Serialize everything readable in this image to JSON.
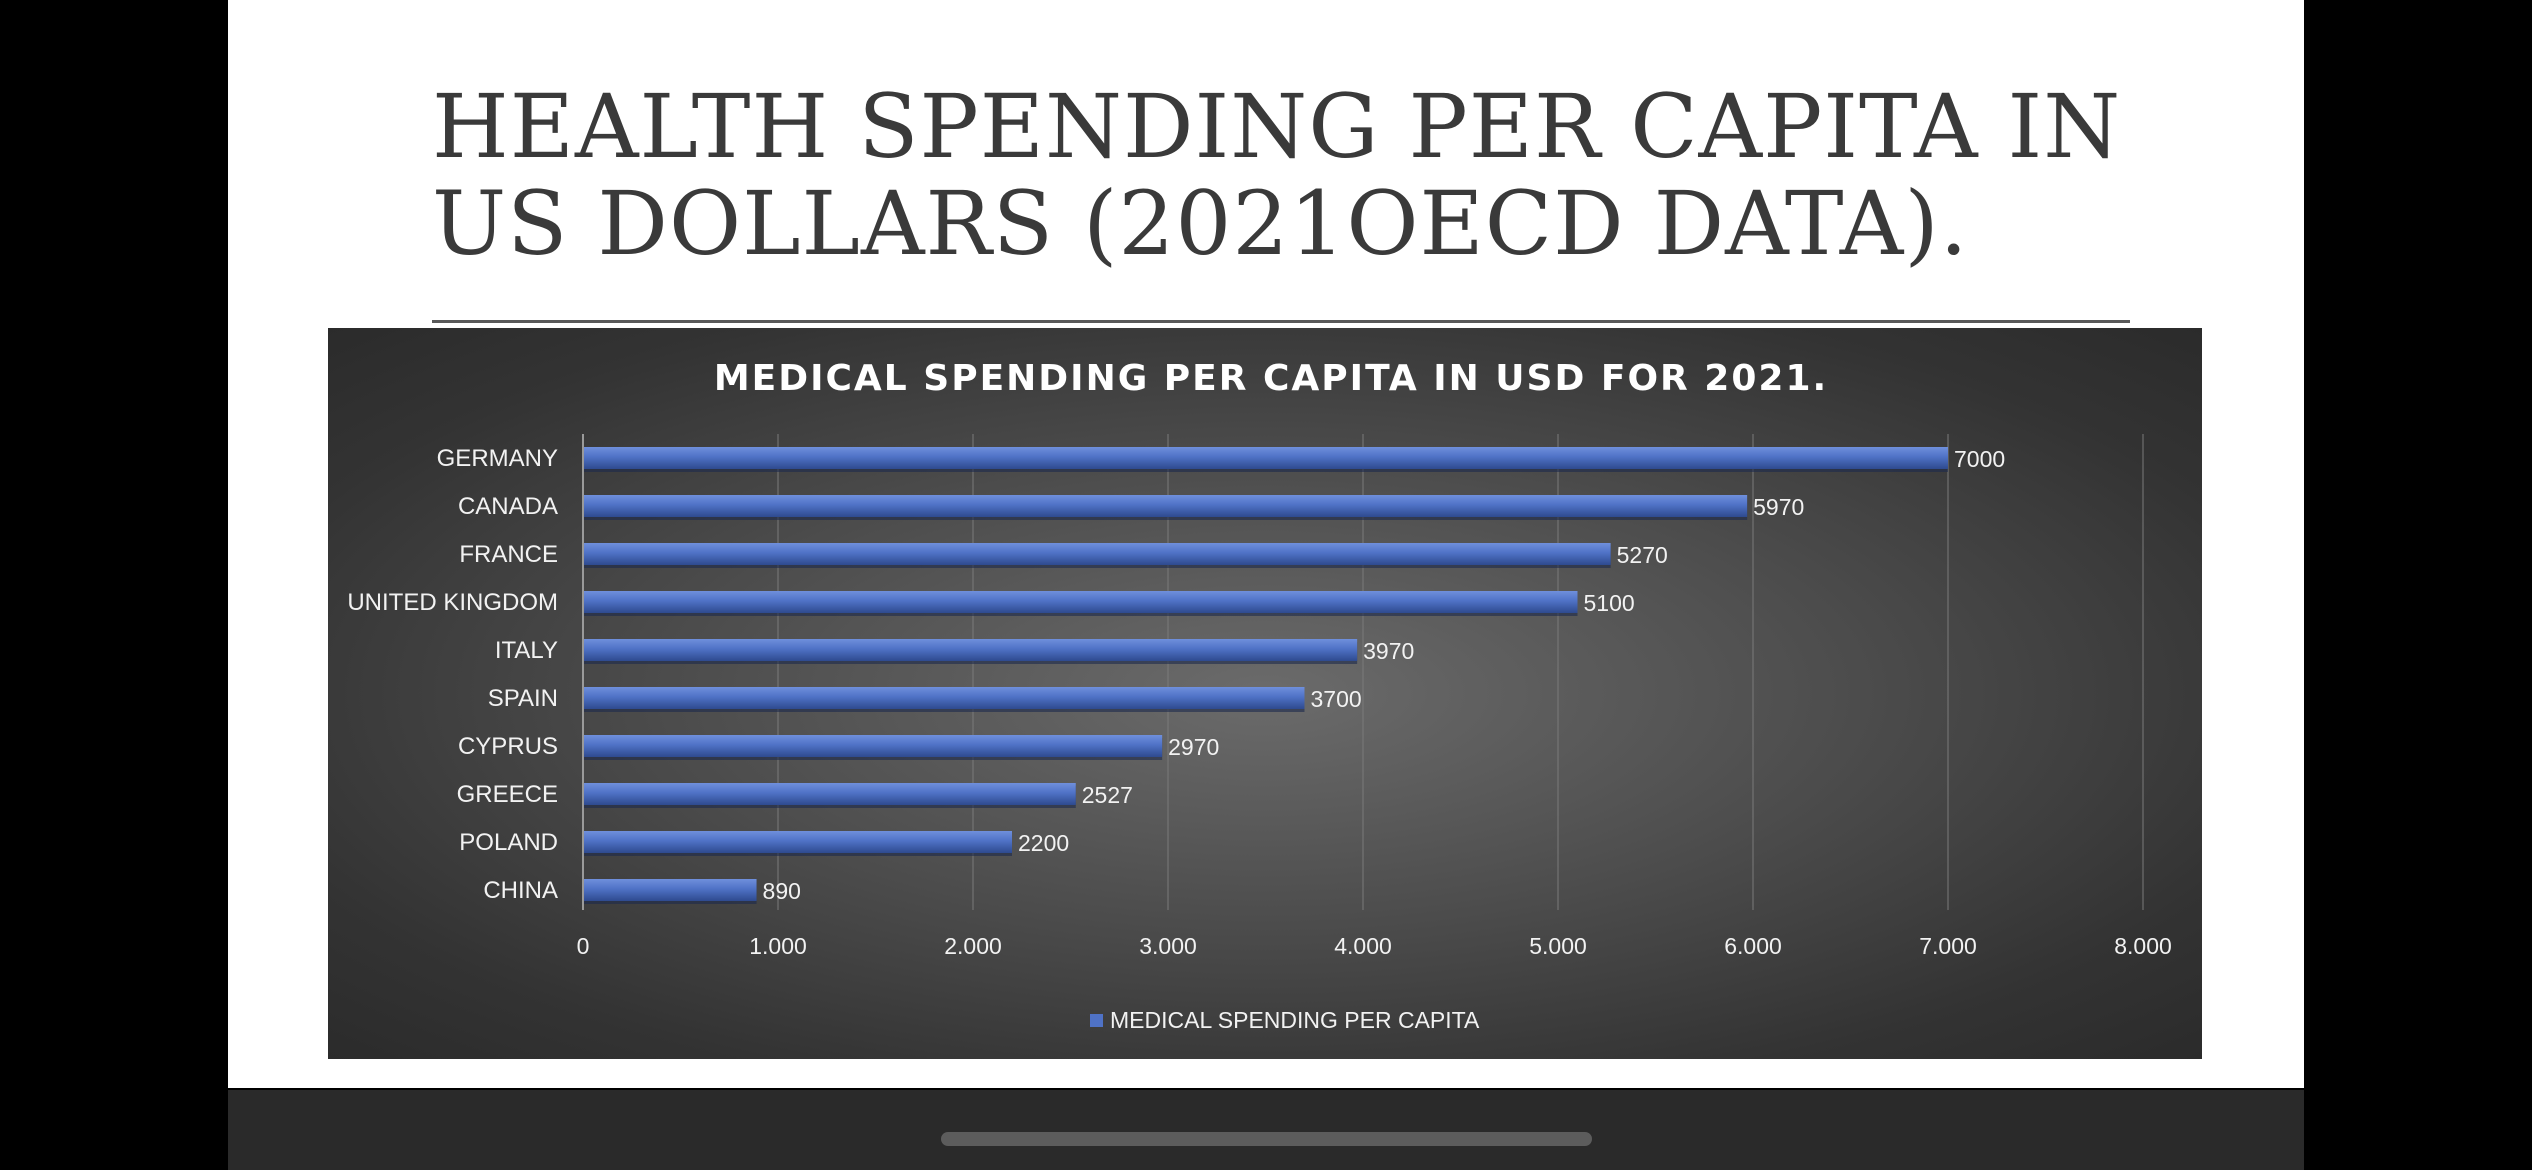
{
  "slide": {
    "title_line1": "HEALTH SPENDING PER CAPITA IN",
    "title_line2": "US DOLLARS (2021OECD DATA)."
  },
  "colors": {
    "bar": "#4f72c6",
    "bar_top": "#6f8fdc",
    "bar_bottom": "#2e4a8f",
    "grid": "#7a7a7a",
    "text": "#f2f2f2"
  },
  "chart_data": {
    "type": "bar",
    "orientation": "horizontal",
    "title": "MEDICAL SPENDING PER CAPITA IN USD FOR 2021.",
    "xlabel": "",
    "ylabel": "",
    "categories": [
      "GERMANY",
      "CANADA",
      "FRANCE",
      "UNITED KINGDOM",
      "ITALY",
      "SPAIN",
      "CYPRUS",
      "GREECE",
      "POLAND",
      "CHINA"
    ],
    "series": [
      {
        "name": "MEDICAL SPENDING PER CAPITA",
        "values": [
          7000,
          5970,
          5270,
          5100,
          3970,
          3700,
          2970,
          2527,
          2200,
          890
        ]
      }
    ],
    "xlim": [
      0,
      8000
    ],
    "ticks": [
      0,
      1000,
      2000,
      3000,
      4000,
      5000,
      6000,
      7000,
      8000
    ],
    "tick_labels": [
      "0",
      "1.000",
      "2.000",
      "3.000",
      "4.000",
      "5.000",
      "6.000",
      "7.000",
      "8.000"
    ],
    "grid": true,
    "data_labels": true,
    "legend": "bottom"
  }
}
